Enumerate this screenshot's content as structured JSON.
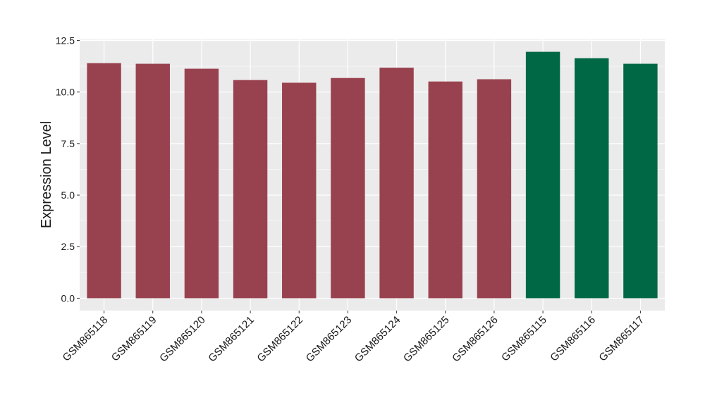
{
  "chart_data": {
    "type": "bar",
    "y_label": "Expression Level",
    "categories": [
      "GSM865118",
      "GSM865119",
      "GSM865120",
      "GSM865121",
      "GSM865122",
      "GSM865123",
      "GSM865124",
      "GSM865125",
      "GSM865126",
      "GSM865115",
      "GSM865116",
      "GSM865117"
    ],
    "values": [
      11.4,
      11.37,
      11.13,
      10.58,
      10.45,
      10.68,
      11.18,
      10.51,
      10.62,
      11.95,
      11.64,
      11.37
    ],
    "colors": [
      "#99424f",
      "#99424f",
      "#99424f",
      "#99424f",
      "#99424f",
      "#99424f",
      "#99424f",
      "#99424f",
      "#99424f",
      "#006845",
      "#006845",
      "#006845"
    ],
    "ylim": [
      -0.6,
      12.55
    ],
    "yticks": [
      {
        "value": 0,
        "label": "0.0"
      },
      2.5,
      {
        "value": 5,
        "label": "5.0"
      },
      7.5,
      {
        "value": 10,
        "label": "10.0"
      },
      12.5
    ],
    "grid": true
  }
}
